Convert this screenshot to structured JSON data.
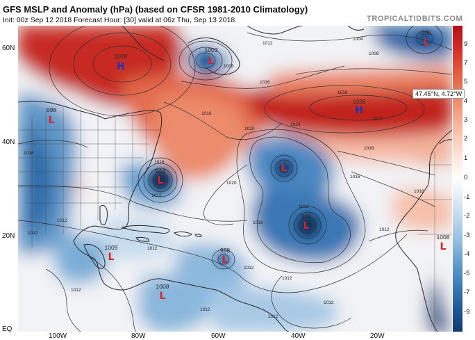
{
  "header": {
    "title": "GFS MSLP and Anomaly (hPa) (based on CFSR 1981-2010 Climatology)",
    "subtitle": "Init: 00z Sep 12 2018   Forecast Hour: [30]   valid at 06z Thu, Sep 13 2018",
    "brand": "TROPICALTIDBITS.COM"
  },
  "map": {
    "lat_labels": [
      "60N",
      "40N",
      "20N",
      "EQ"
    ],
    "lon_labels": [
      "100W",
      "80W",
      "60W",
      "40W",
      "20W"
    ],
    "pressure_centers": [
      {
        "type": "H",
        "value": "1028",
        "color": "#2234b4"
      },
      {
        "type": "H",
        "value": "1028",
        "color": "#2234b4"
      },
      {
        "type": "L",
        "value": "1003",
        "color": "#d8232a"
      },
      {
        "type": "L",
        "value": "995",
        "color": "#d8232a"
      },
      {
        "type": "L",
        "value": "998",
        "color": "#d8232a"
      },
      {
        "type": "L",
        "value": "944",
        "color": "#d8232a"
      },
      {
        "type": "L",
        "value": "",
        "color": "#d8232a"
      },
      {
        "type": "L",
        "value": "982",
        "color": "#d8232a"
      },
      {
        "type": "L",
        "value": "998",
        "color": "#d8232a"
      },
      {
        "type": "L",
        "value": "1009",
        "color": "#d8232a"
      },
      {
        "type": "L",
        "value": "1008",
        "color": "#d8232a"
      },
      {
        "type": "L",
        "value": "1008",
        "color": "#d8232a"
      }
    ],
    "contour_labels": [
      "1004",
      "1008",
      "1012",
      "1016",
      "1020",
      "1024",
      "1016",
      "1020",
      "1016",
      "1020",
      "1012",
      "1016",
      "1012",
      "1012",
      "1012",
      "1012",
      "1012",
      "1016",
      "1016",
      "1012",
      "1012",
      "1012",
      "1012",
      "1016",
      "1008",
      "1012",
      "1016",
      "1012",
      "1016"
    ]
  },
  "tooltip": {
    "text": "47.45°N, 4.72°W"
  },
  "colorbar": {
    "ticks": [
      "9",
      "7",
      "5",
      "4",
      "3",
      "2",
      "1",
      "0",
      "-1",
      "-2",
      "-3",
      "-4",
      "-5",
      "-7",
      "-9"
    ],
    "colors": [
      "#b3101b",
      "#cf2b2a",
      "#e0553e",
      "#ea7a5a",
      "#f4a286",
      "#f9c7b3",
      "#fde6dc",
      "#ffffff",
      "#dde9f5",
      "#b8d3ea",
      "#8db9dd",
      "#5e98c9",
      "#3978b3",
      "#1f5694",
      "#123a6e"
    ]
  }
}
